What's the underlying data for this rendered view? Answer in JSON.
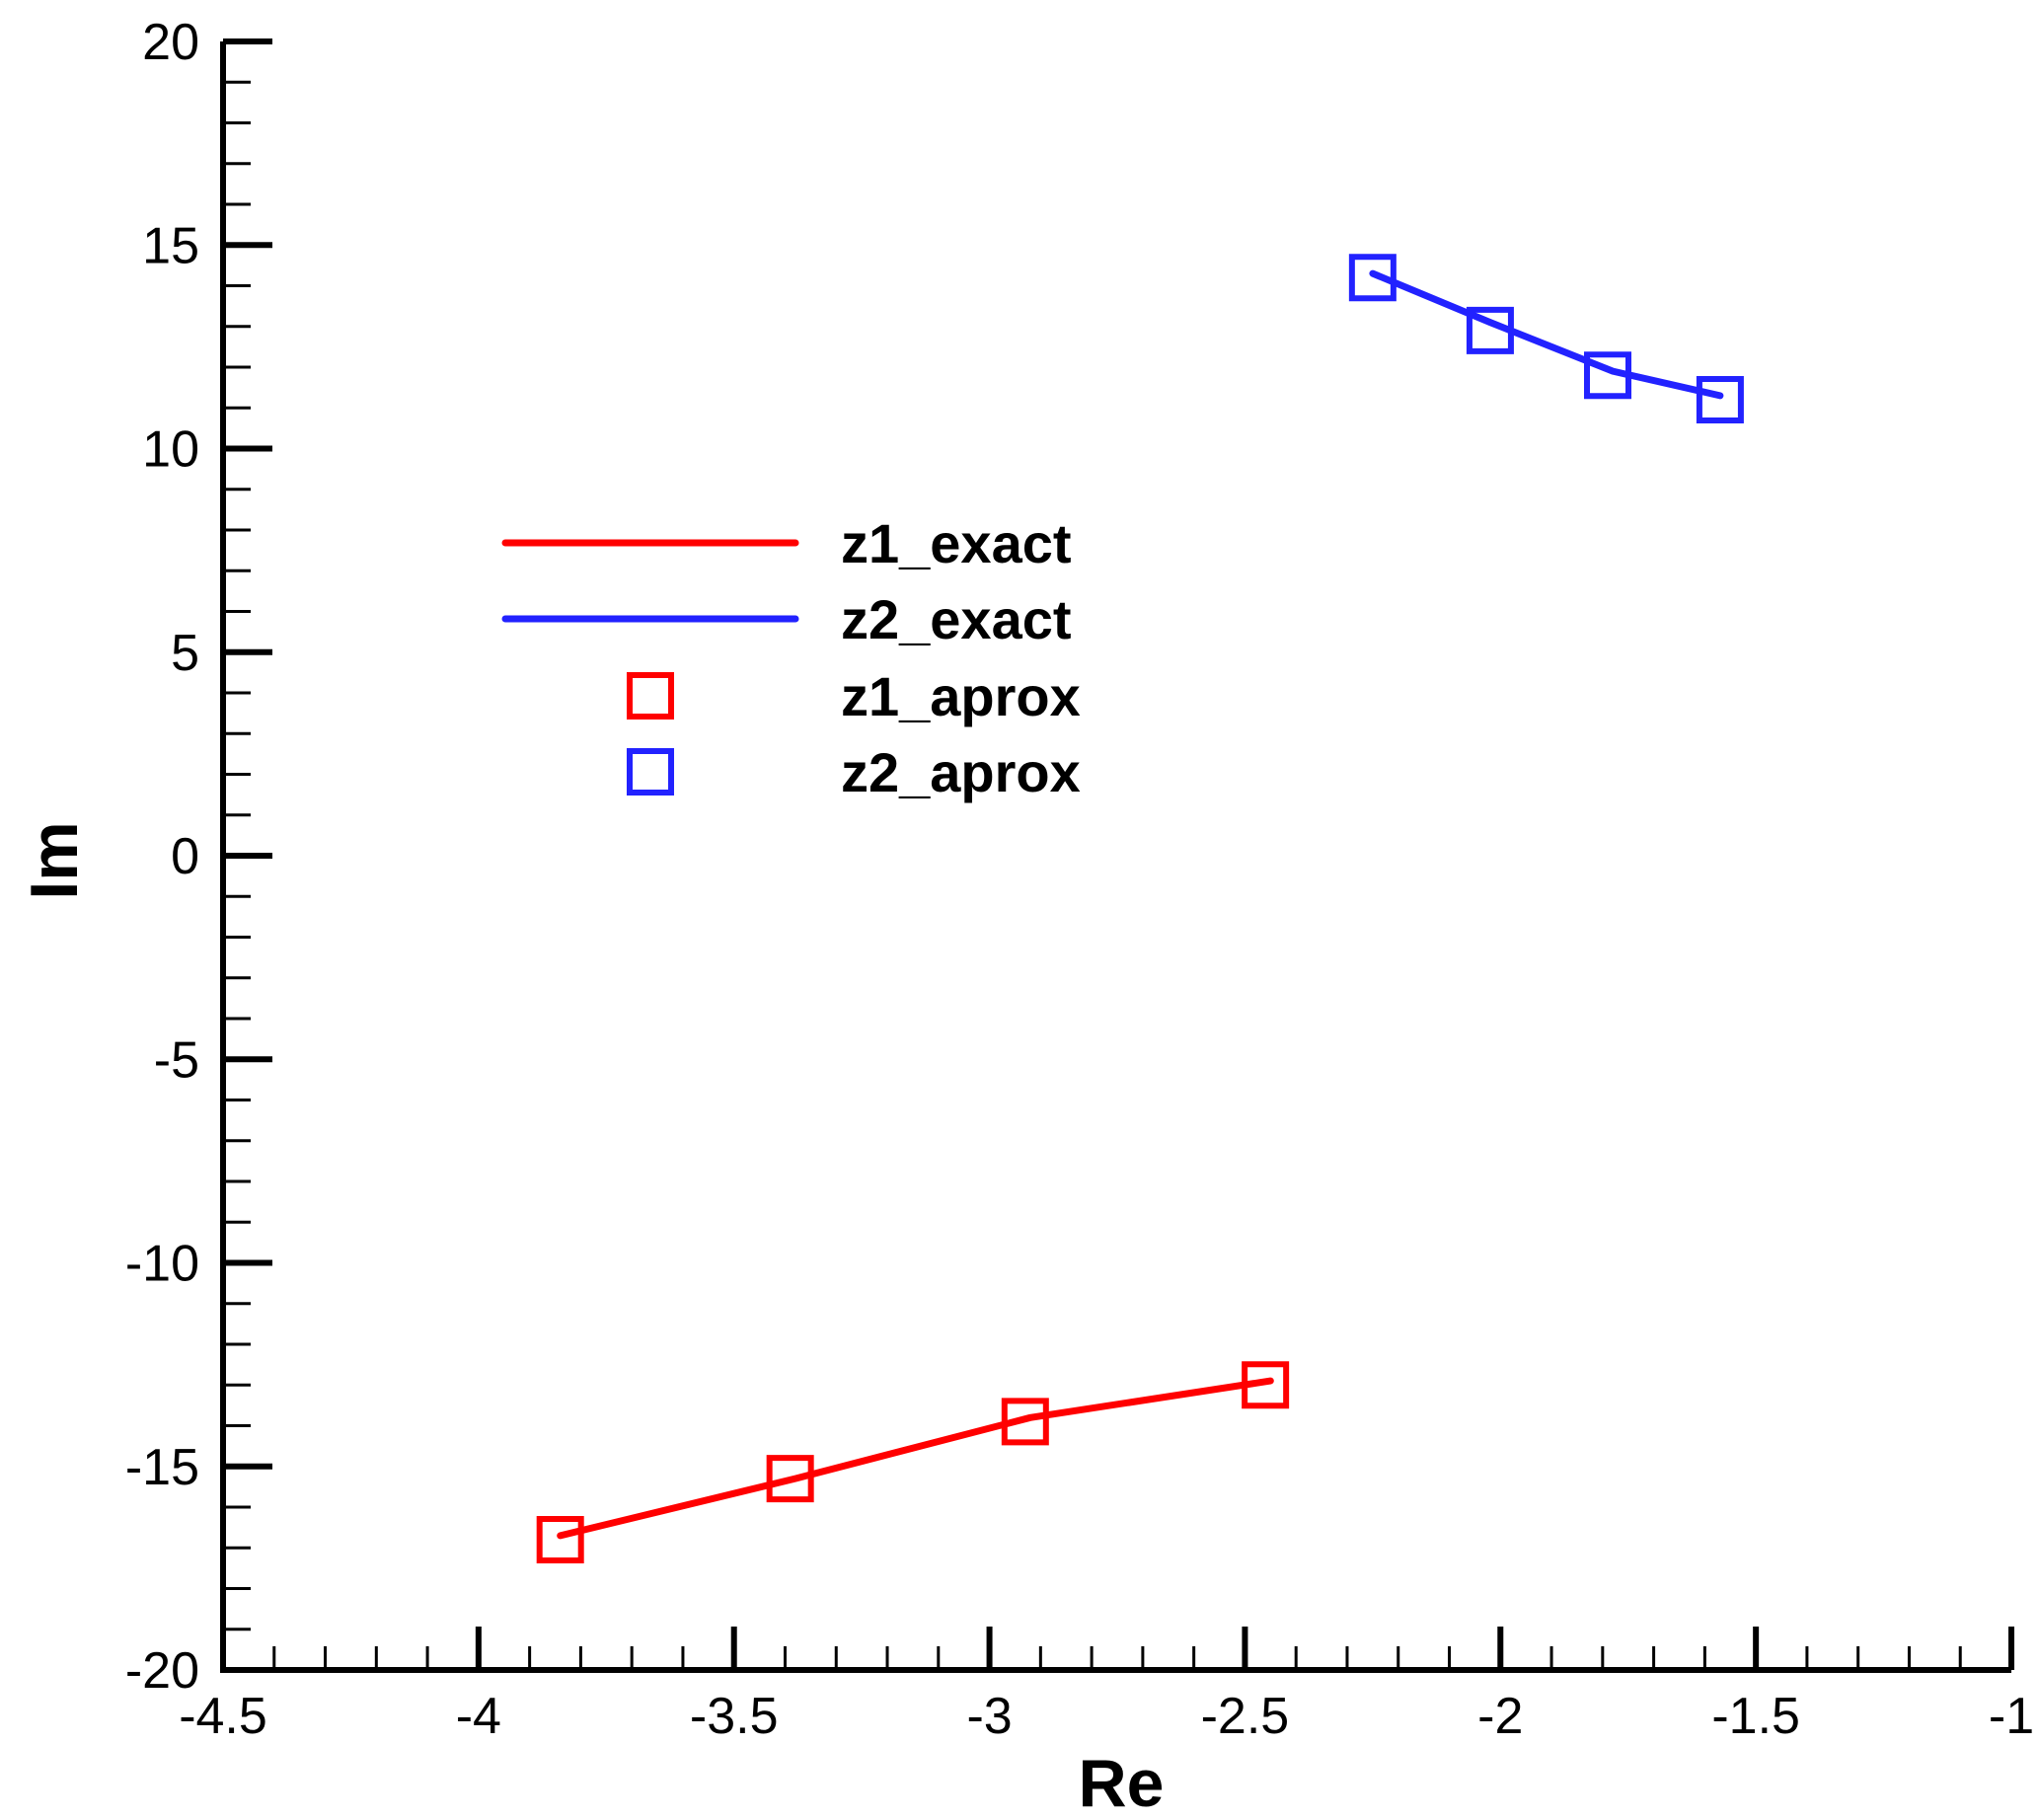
{
  "chart_data": {
    "type": "line",
    "xlabel": "Re",
    "ylabel": "Im",
    "xlim": [
      -4.5,
      -1
    ],
    "ylim": [
      -20,
      20
    ],
    "x_major_ticks": [
      -4.5,
      -4,
      -3.5,
      -3,
      -2.5,
      -2,
      -1.5,
      -1
    ],
    "x_tick_labels": [
      "-4.5",
      "-4",
      "-3.5",
      "-3",
      "-2.5",
      "-2",
      "-1.5",
      "-1"
    ],
    "x_minor_step": 0.1,
    "y_major_ticks": [
      20,
      15,
      10,
      5,
      0,
      -5,
      -10,
      -15,
      -20
    ],
    "y_tick_labels": [
      "20",
      "15",
      "10",
      "5",
      "0",
      "-5",
      "-10",
      "-15",
      "-20"
    ],
    "y_minor_step": 1,
    "grid": false,
    "legend_position": "upper-left",
    "series": [
      {
        "name": "z1_exact",
        "kind": "line",
        "color": "#ff0000",
        "x": [
          -3.84,
          -3.38,
          -2.92,
          -2.45
        ],
        "y": [
          -16.7,
          -15.3,
          -13.8,
          -12.9
        ]
      },
      {
        "name": "z2_exact",
        "kind": "line",
        "color": "#2222ff",
        "x": [
          -2.25,
          -2.02,
          -1.78,
          -1.57
        ],
        "y": [
          14.3,
          13.1,
          11.9,
          11.3
        ]
      },
      {
        "name": "z1_aprox",
        "kind": "marker",
        "marker": "square",
        "color": "#ff0000",
        "x": [
          -3.84,
          -3.39,
          -2.93,
          -2.46
        ],
        "y": [
          -16.8,
          -15.3,
          -13.9,
          -13.0
        ]
      },
      {
        "name": "z2_aprox",
        "kind": "marker",
        "marker": "square",
        "color": "#2222ff",
        "x": [
          -2.25,
          -2.02,
          -1.79,
          -1.57
        ],
        "y": [
          14.2,
          12.9,
          11.8,
          11.2
        ]
      }
    ]
  }
}
